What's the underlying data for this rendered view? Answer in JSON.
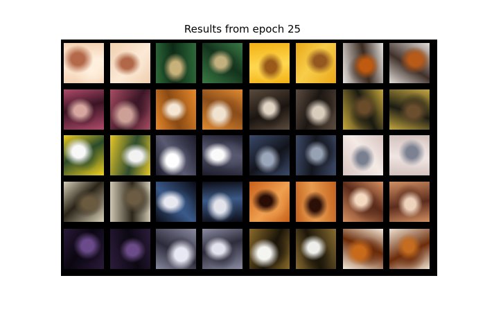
{
  "figure": {
    "title": "Results from epoch 25"
  },
  "grid": {
    "rows": 5,
    "cols": 8,
    "pair_layout": "original-reconstruction",
    "tiles": [
      {
        "subject": "white-cat-face",
        "colors": [
          "#f4d2b4",
          "#b46a4a",
          "#fff1e0"
        ]
      },
      {
        "subject": "white-cat-face",
        "colors": [
          "#f0cfae",
          "#b06848",
          "#fbe9d6"
        ]
      },
      {
        "subject": "cat-in-grass",
        "colors": [
          "#2e6b3a",
          "#c9b27a",
          "#0d2a16"
        ]
      },
      {
        "subject": "cat-in-grass",
        "colors": [
          "#3b7a44",
          "#c2b07e",
          "#13331c"
        ]
      },
      {
        "subject": "cat-on-yellow",
        "colors": [
          "#f2b014",
          "#9a5a1a",
          "#ffd850"
        ]
      },
      {
        "subject": "cat-on-yellow",
        "colors": [
          "#eaa818",
          "#945820",
          "#f8cd4a"
        ]
      },
      {
        "subject": "orange-cat-window",
        "colors": [
          "#e8e4e0",
          "#c05a10",
          "#3a2a20"
        ]
      },
      {
        "subject": "orange-cat-window",
        "colors": [
          "#e2ddd8",
          "#b85a18",
          "#40302a"
        ]
      },
      {
        "subject": "cat-pink-blanket",
        "colors": [
          "#b04a6a",
          "#d8a6a0",
          "#3a1424"
        ]
      },
      {
        "subject": "cat-pink-blanket",
        "colors": [
          "#a84c62",
          "#cda097",
          "#3a1626"
        ]
      },
      {
        "subject": "orange-cat-back",
        "colors": [
          "#e8892a",
          "#f4e6d2",
          "#8a4a14"
        ]
      },
      {
        "subject": "orange-cat-back",
        "colors": [
          "#e08a30",
          "#f0e2cf",
          "#8a4c1a"
        ]
      },
      {
        "subject": "tabby-cat-sign",
        "colors": [
          "#5a4a3c",
          "#e0d4c4",
          "#1a1410"
        ]
      },
      {
        "subject": "tabby-cat-sign",
        "colors": [
          "#5c4c40",
          "#d8ccbc",
          "#1c1612"
        ]
      },
      {
        "subject": "cat-yellow-flowers",
        "colors": [
          "#c8a83a",
          "#6a4c2a",
          "#1a1a12"
        ]
      },
      {
        "subject": "cat-yellow-flowers",
        "colors": [
          "#c4a640",
          "#6a4e2e",
          "#1c1c14"
        ]
      },
      {
        "subject": "yellow-truck",
        "colors": [
          "#f0d020",
          "#f8f8f8",
          "#2a4a2a"
        ]
      },
      {
        "subject": "yellow-truck",
        "colors": [
          "#e6c828",
          "#f2f2f2",
          "#2e4c2e"
        ]
      },
      {
        "subject": "dark-cat-white-box",
        "colors": [
          "#1a1a2a",
          "#ffffff",
          "#5a5a72"
        ]
      },
      {
        "subject": "dark-cat-white-box",
        "colors": [
          "#1c1c2c",
          "#fafafa",
          "#585870"
        ]
      },
      {
        "subject": "gray-cat-dark",
        "colors": [
          "#3a4a6a",
          "#9aa6ba",
          "#12141c"
        ]
      },
      {
        "subject": "gray-cat-dark",
        "colors": [
          "#3c4a68",
          "#96a2b4",
          "#14161e"
        ]
      },
      {
        "subject": "cat-pale-bg",
        "colors": [
          "#d8c4c0",
          "#7a8090",
          "#f4eae6"
        ]
      },
      {
        "subject": "cat-pale-bg",
        "colors": [
          "#d2c0bc",
          "#7c8292",
          "#efe5e2"
        ]
      },
      {
        "subject": "tabby-cat-face",
        "colors": [
          "#d8d0b8",
          "#6a5a40",
          "#2a2418"
        ]
      },
      {
        "subject": "tabby-cat-face",
        "colors": [
          "#d0c8b2",
          "#6c5c44",
          "#2c261a"
        ]
      },
      {
        "subject": "black-white-cat",
        "colors": [
          "#0a0a14",
          "#e8e8f0",
          "#3a5a8a"
        ]
      },
      {
        "subject": "black-white-cat",
        "colors": [
          "#0c0c16",
          "#e2e2ea",
          "#3c5a86"
        ]
      },
      {
        "subject": "orange-cat-dark",
        "colors": [
          "#c8601a",
          "#2a0e06",
          "#f0a050"
        ]
      },
      {
        "subject": "orange-cat-dark",
        "colors": [
          "#c2621e",
          "#2c1008",
          "#e89c50"
        ]
      },
      {
        "subject": "orange-cat-closeup",
        "colors": [
          "#d89060",
          "#f4d8c0",
          "#5a2a1a"
        ]
      },
      {
        "subject": "orange-cat-closeup",
        "colors": [
          "#d29064",
          "#eed2bc",
          "#5c2c1c"
        ]
      },
      {
        "subject": "dark-cat-purple",
        "colors": [
          "#2a1a3a",
          "#6a4a8a",
          "#0a0610"
        ]
      },
      {
        "subject": "dark-cat-purple",
        "colors": [
          "#2c1c3c",
          "#6c4c88",
          "#0c0812"
        ]
      },
      {
        "subject": "gray-cat-lying",
        "colors": [
          "#8a8aa0",
          "#e8e8f4",
          "#2a2a3a"
        ]
      },
      {
        "subject": "gray-cat-lying",
        "colors": [
          "#8c8ca2",
          "#e2e2ee",
          "#2c2c3c"
        ]
      },
      {
        "subject": "cat-paws-floor",
        "colors": [
          "#8a6a2a",
          "#f4f4f0",
          "#1a1408"
        ]
      },
      {
        "subject": "cat-paws-floor",
        "colors": [
          "#886c30",
          "#eeeeea",
          "#1c160a"
        ]
      },
      {
        "subject": "cat-orange-flowers",
        "colors": [
          "#f4e8d8",
          "#c86a1a",
          "#6a2a08"
        ]
      },
      {
        "subject": "cat-orange-flowers",
        "colors": [
          "#eee2d2",
          "#c46c20",
          "#6c2c0a"
        ]
      }
    ]
  }
}
